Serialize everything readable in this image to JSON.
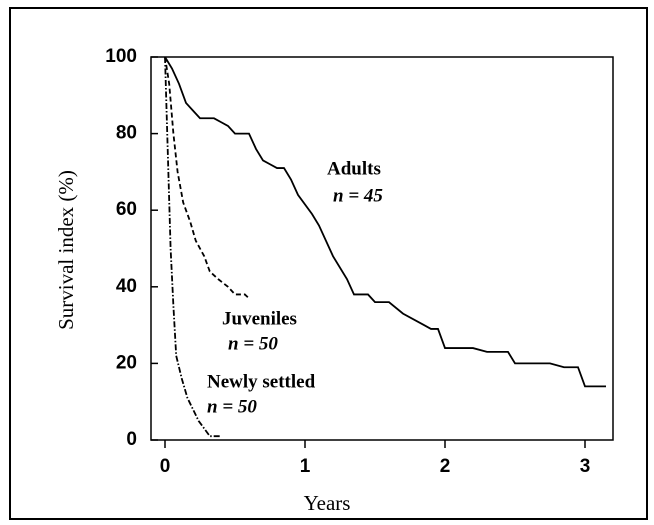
{
  "chart_data": {
    "type": "line",
    "xlabel": "Years",
    "ylabel": "Survival index (%)",
    "xlim": [
      -0.1,
      3.2
    ],
    "xticks": [
      0,
      1,
      2,
      3
    ],
    "ylim": [
      0,
      100
    ],
    "yticks": [
      0,
      20,
      40,
      60,
      80,
      100
    ],
    "series": [
      {
        "name": "Adults",
        "n_label": "n = 45",
        "color": "#000000",
        "line_style": "solid",
        "x": [
          0,
          0.05,
          0.1,
          0.15,
          0.2,
          0.25,
          0.35,
          0.4,
          0.45,
          0.5,
          0.6,
          0.65,
          0.7,
          0.75,
          0.8,
          0.85,
          0.9,
          0.95,
          1.05,
          1.1,
          1.2,
          1.3,
          1.35,
          1.45,
          1.5,
          1.6,
          1.7,
          1.85,
          1.9,
          1.95,
          2.0,
          2.2,
          2.3,
          2.45,
          2.5,
          2.75,
          2.85,
          2.95,
          3.0,
          3.15
        ],
        "values": [
          100,
          97,
          93,
          88,
          86,
          84,
          84,
          83,
          82,
          80,
          80,
          76,
          73,
          72,
          71,
          71,
          68,
          64,
          59,
          56,
          48,
          42,
          38,
          38,
          36,
          36,
          33,
          30,
          29,
          29,
          24,
          24,
          23,
          23,
          20,
          20,
          19,
          19,
          14,
          14
        ]
      },
      {
        "name": "Juveniles",
        "n_label": "n = 50",
        "color": "#000000",
        "line_style": "dashed",
        "x": [
          0,
          0.03,
          0.06,
          0.09,
          0.13,
          0.18,
          0.22,
          0.28,
          0.32,
          0.38,
          0.45,
          0.5,
          0.57,
          0.6
        ],
        "values": [
          100,
          93,
          80,
          70,
          62,
          57,
          52,
          48,
          44,
          42,
          40,
          38,
          38,
          37
        ]
      },
      {
        "name": "Newly settled",
        "n_label": "n = 50",
        "color": "#000000",
        "line_style": "dashdot",
        "x": [
          0,
          0.02,
          0.04,
          0.06,
          0.08,
          0.12,
          0.16,
          0.2,
          0.24,
          0.28,
          0.32,
          0.4
        ],
        "values": [
          100,
          75,
          50,
          35,
          22,
          16,
          11,
          8,
          5,
          3,
          1,
          1
        ]
      }
    ]
  }
}
